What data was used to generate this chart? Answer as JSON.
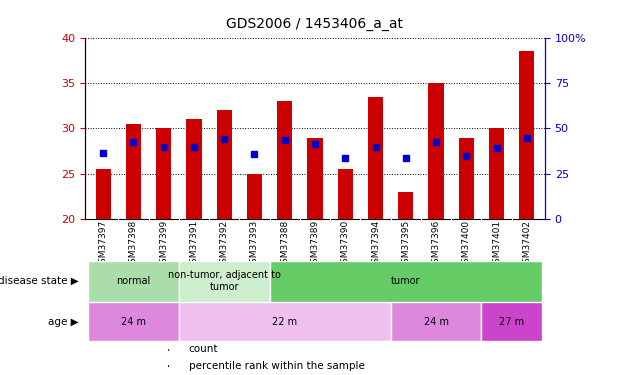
{
  "title": "GDS2006 / 1453406_a_at",
  "samples": [
    "GSM37397",
    "GSM37398",
    "GSM37399",
    "GSM37391",
    "GSM37392",
    "GSM37393",
    "GSM37388",
    "GSM37389",
    "GSM37390",
    "GSM37394",
    "GSM37395",
    "GSM37396",
    "GSM37400",
    "GSM37401",
    "GSM37402"
  ],
  "bar_values": [
    25.5,
    30.5,
    30.0,
    31.0,
    32.0,
    25.0,
    33.0,
    29.0,
    25.5,
    33.5,
    23.0,
    35.0,
    29.0,
    30.0,
    38.5
  ],
  "blue_values": [
    27.3,
    28.5,
    28.0,
    28.0,
    28.8,
    27.2,
    28.7,
    28.3,
    26.8,
    28.0,
    26.8,
    28.5,
    27.0,
    27.8,
    29.0
  ],
  "y_min": 20,
  "y_max": 40,
  "y_ticks_left": [
    20,
    25,
    30,
    35,
    40
  ],
  "y_ticks_right": [
    0,
    25,
    50,
    75,
    100
  ],
  "bar_color": "#cc0000",
  "blue_color": "#0000cc",
  "bar_width": 0.5,
  "disease_state_groups": [
    {
      "label": "normal",
      "start": 0,
      "end": 3,
      "color": "#aaddaa"
    },
    {
      "label": "non-tumor, adjacent to\ntumor",
      "start": 3,
      "end": 6,
      "color": "#cceecc"
    },
    {
      "label": "tumor",
      "start": 6,
      "end": 15,
      "color": "#66cc66"
    }
  ],
  "age_groups": [
    {
      "label": "24 m",
      "start": 0,
      "end": 3,
      "color": "#dd88dd"
    },
    {
      "label": "22 m",
      "start": 3,
      "end": 10,
      "color": "#f0c0f0"
    },
    {
      "label": "24 m",
      "start": 10,
      "end": 13,
      "color": "#dd88dd"
    },
    {
      "label": "27 m",
      "start": 13,
      "end": 15,
      "color": "#cc44cc"
    }
  ],
  "legend_items": [
    {
      "color": "#cc0000",
      "label": "count"
    },
    {
      "color": "#0000cc",
      "label": "percentile rank within the sample"
    }
  ],
  "left_axis_color": "#cc0000",
  "right_axis_color": "#0000cc",
  "background_color": "#ffffff",
  "plot_bg_color": "#ffffff",
  "xticklabel_area_color": "#cccccc",
  "left_label": "disease state",
  "left_label2": "age"
}
